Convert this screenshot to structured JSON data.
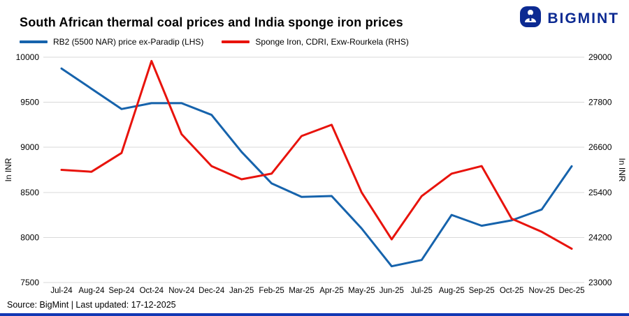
{
  "header": {
    "title": "South African thermal coal prices and India sponge iron prices",
    "logo_text": "BIGMINT"
  },
  "legend": [
    {
      "label": "RB2 (5500 NAR) price ex-Paradip (LHS)",
      "color": "#1663ac"
    },
    {
      "label": "Sponge Iron, CDRI, Exw-Rourkela (RHS)",
      "color": "#e8130c"
    }
  ],
  "footer": {
    "source_line": "Source: BigMint | Last updated: 17-12-2025"
  },
  "colors": {
    "brand_blue": "#0c2a92",
    "bottom_bar": "#1238b4",
    "grid": "#d9d9d9"
  },
  "chart_data": {
    "type": "line",
    "categories": [
      "Jul-24",
      "Aug-24",
      "Sep-24",
      "Oct-24",
      "Nov-24",
      "Dec-24",
      "Jan-25",
      "Feb-25",
      "Mar-25",
      "Apr-25",
      "May-25",
      "Jun-25",
      "Jul-25",
      "Aug-25",
      "Sep-25",
      "Oct-25",
      "Nov-25",
      "Dec-25"
    ],
    "series": [
      {
        "name": "RB2 (5500 NAR) price ex-Paradip (LHS)",
        "axis": "left",
        "color": "#1663ac",
        "values": [
          9875,
          9650,
          9425,
          9490,
          9490,
          9360,
          8950,
          8600,
          8450,
          8460,
          8100,
          7680,
          7750,
          8250,
          8130,
          8190,
          8310,
          8790
        ]
      },
      {
        "name": "Sponge Iron, CDRI, Exw-Rourkela (RHS)",
        "axis": "right",
        "color": "#e8130c",
        "values": [
          26000,
          25950,
          26450,
          28900,
          26950,
          26100,
          25750,
          25900,
          26900,
          27200,
          25400,
          24150,
          25300,
          25900,
          26100,
          24700,
          24350,
          23900
        ]
      }
    ],
    "left_axis": {
      "label": "In INR",
      "min": 7500,
      "max": 10000,
      "ticks": [
        7500,
        8000,
        8500,
        9000,
        9500,
        10000
      ]
    },
    "right_axis": {
      "label": "In INR",
      "min": 23000,
      "max": 29000,
      "ticks": [
        23000,
        24200,
        25400,
        26600,
        27800,
        29000
      ]
    },
    "grid": true,
    "legend_position": "top-left"
  }
}
